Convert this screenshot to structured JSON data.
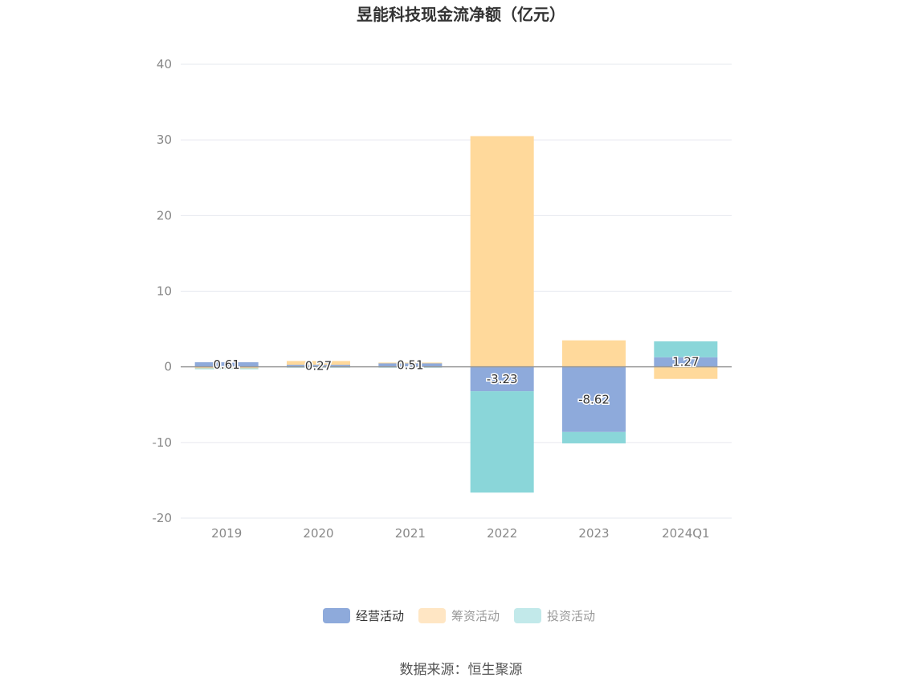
{
  "chart_data": {
    "type": "bar",
    "stacked": true,
    "title": "昱能科技现金流净额（亿元）",
    "categories": [
      "2019",
      "2020",
      "2021",
      "2022",
      "2023",
      "2024Q1"
    ],
    "ylim": [
      -20,
      40
    ],
    "yticks": [
      -20,
      -10,
      0,
      10,
      20,
      30,
      40
    ],
    "grid": true,
    "legend_position": "bottom",
    "series": [
      {
        "name": "经营活动",
        "color": "#8eaadb",
        "values": [
          0.61,
          0.27,
          0.51,
          -3.23,
          -8.62,
          1.27
        ],
        "labels": [
          "0.61",
          "0.27",
          "0.51",
          "-3.23",
          "-8.62",
          "1.27"
        ]
      },
      {
        "name": "筹资活动",
        "color": "#ffd99b",
        "values": [
          -0.2,
          0.5,
          0.05,
          30.5,
          3.5,
          -1.6
        ]
      },
      {
        "name": "投资活动",
        "color": "#8ad6d9",
        "values": [
          -0.1,
          -0.1,
          -0.05,
          -13.4,
          -1.5,
          2.1
        ]
      }
    ]
  },
  "legend": {
    "items": [
      {
        "label": "经营活动",
        "color": "#8eaadb",
        "text_color": "#333333"
      },
      {
        "label": "筹资活动",
        "color": "#ffe6c4",
        "text_color": "#999999"
      },
      {
        "label": "投资活动",
        "color": "#c2e9ea",
        "text_color": "#999999"
      }
    ]
  },
  "source": "数据来源：恒生聚源"
}
